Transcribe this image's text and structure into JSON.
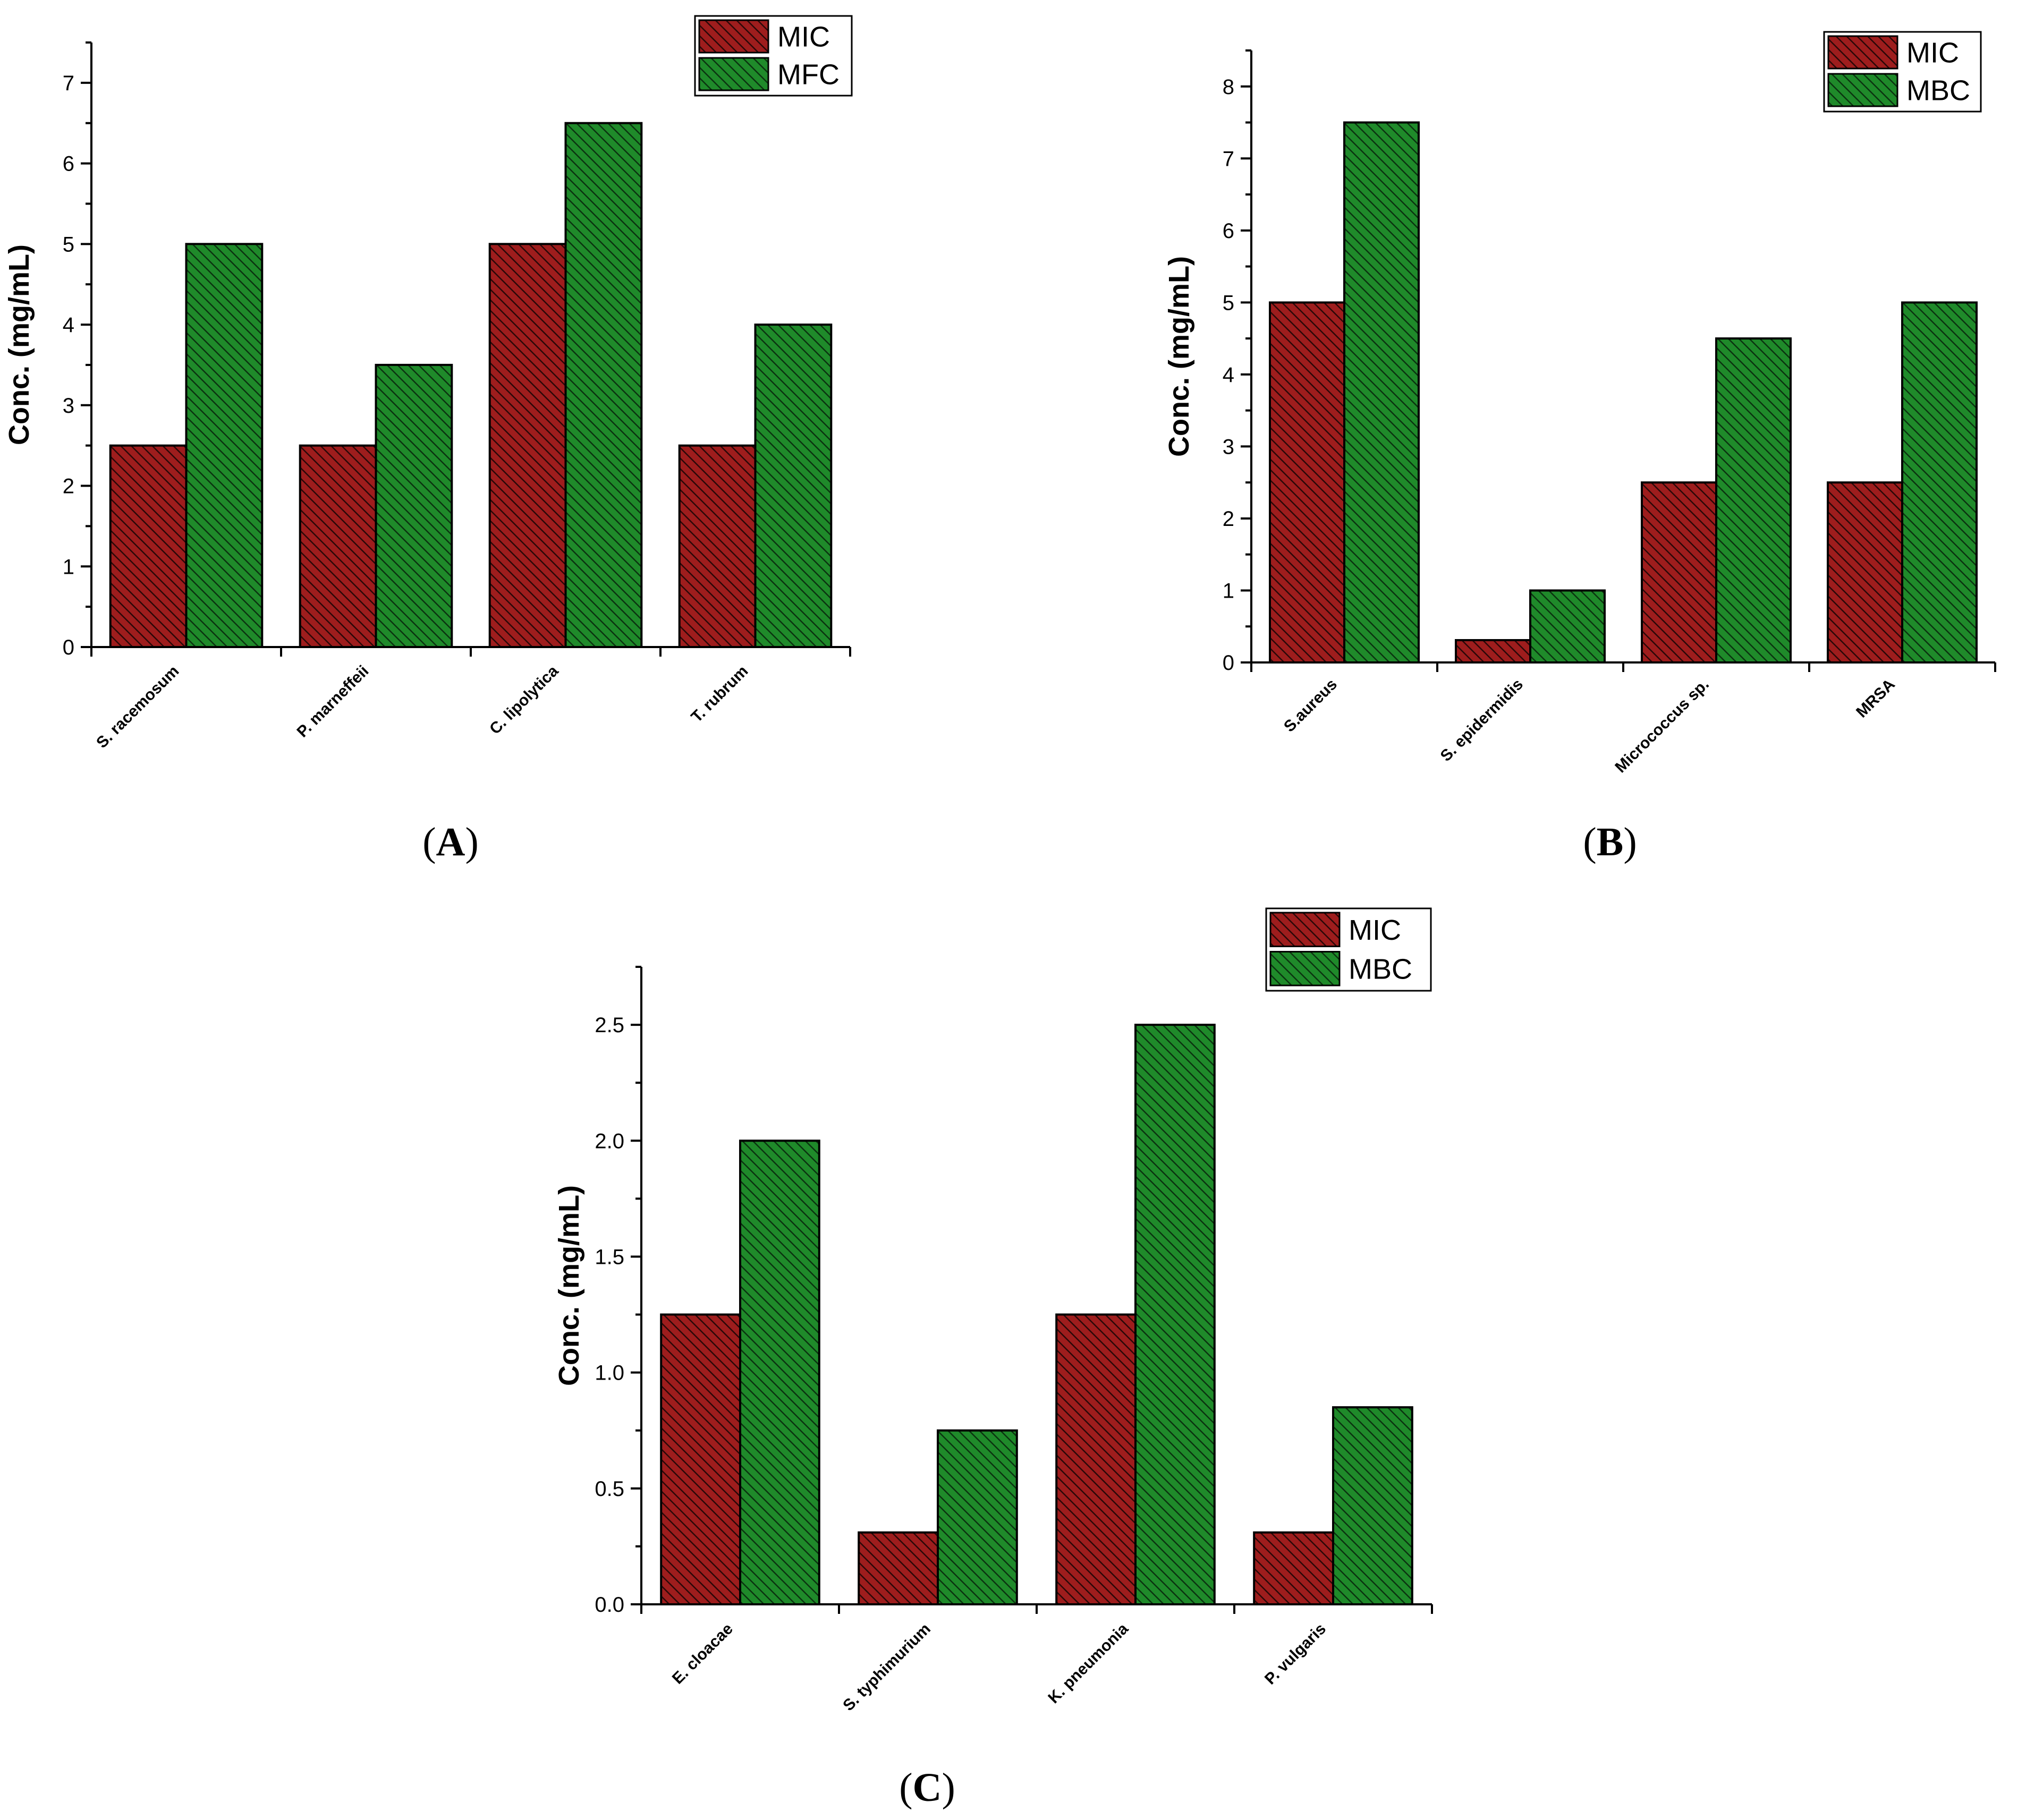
{
  "colors": {
    "MIC": "#9e1d1d",
    "MIC_hatch": "#2a0808",
    "second": "#1f8a2a",
    "second_hatch": "#0b3310"
  },
  "chart_data": [
    {
      "type": "bar",
      "panel": "A",
      "panel_label": "A",
      "ylabel": "Conc. (mg/mL)",
      "xlabel": "",
      "ylim": [
        0,
        7.5
      ],
      "yticks": [
        "0",
        "1",
        "2",
        "3",
        "4",
        "5",
        "6",
        "7"
      ],
      "categories": [
        "S. racemosum",
        "P. marneffeii",
        "C. lipolytica",
        "T. rubrum"
      ],
      "series": [
        {
          "name": "MIC",
          "values": [
            2.5,
            2.5,
            5,
            2.5
          ]
        },
        {
          "name": "MFC",
          "values": [
            5,
            3.5,
            6.5,
            4
          ]
        }
      ],
      "legend": "top-right"
    },
    {
      "type": "bar",
      "panel": "B",
      "panel_label": "B",
      "ylabel": "Conc. (mg/mL)",
      "xlabel": "",
      "ylim": [
        0,
        8.5
      ],
      "yticks": [
        "0",
        "1",
        "2",
        "3",
        "4",
        "5",
        "6",
        "7",
        "8"
      ],
      "categories": [
        "S.aureus",
        "S. epidermidis",
        "Micrococcus sp.",
        "MRSA"
      ],
      "series": [
        {
          "name": "MIC",
          "values": [
            5,
            0.31,
            2.5,
            2.5
          ]
        },
        {
          "name": "MBC",
          "values": [
            7.5,
            1,
            4.5,
            5
          ]
        }
      ],
      "legend": "top-right"
    },
    {
      "type": "bar",
      "panel": "C",
      "panel_label": "C",
      "ylabel": "Conc. (mg/mL)",
      "xlabel": "",
      "ylim": [
        0,
        2.75
      ],
      "yticks": [
        "0.0",
        "0.5",
        "1.0",
        "1.5",
        "2.0",
        "2.5"
      ],
      "categories": [
        "E. cloacae",
        "S. typhimurium",
        "K. pneumonia",
        "P. vulgaris"
      ],
      "series": [
        {
          "name": "MIC",
          "values": [
            1.25,
            0.31,
            1.25,
            0.31
          ]
        },
        {
          "name": "MBC",
          "values": [
            2,
            0.75,
            2.5,
            0.85
          ]
        }
      ],
      "legend": "top-right"
    }
  ]
}
